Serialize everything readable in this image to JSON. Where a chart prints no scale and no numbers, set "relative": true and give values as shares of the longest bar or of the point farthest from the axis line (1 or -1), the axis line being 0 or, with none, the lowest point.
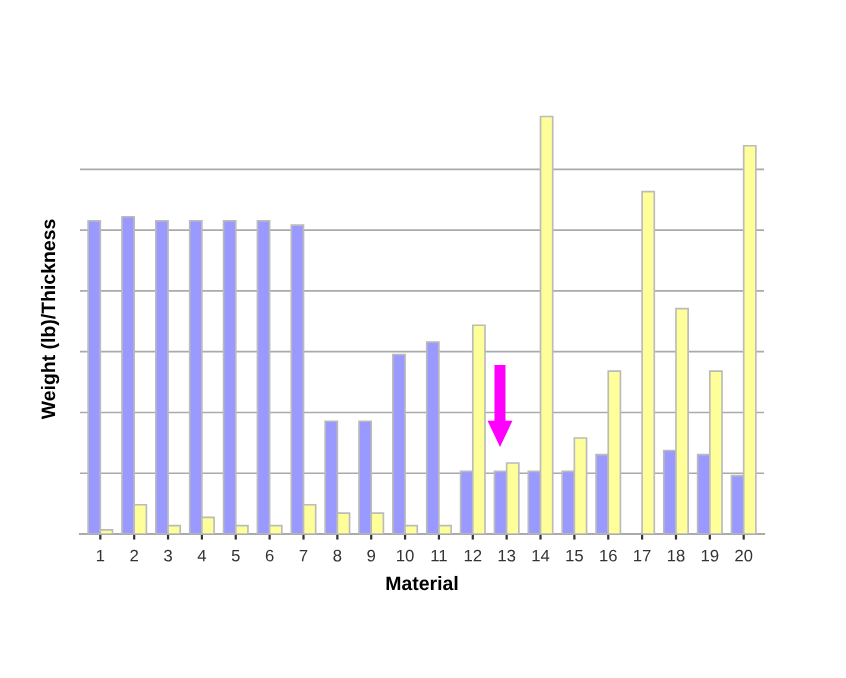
{
  "chart_data": {
    "type": "bar",
    "relative": true,
    "xlabel": "Material",
    "ylabel": "Weight (lb)/Thickness",
    "grid": "y",
    "legend": false,
    "categories": [
      "1",
      "2",
      "3",
      "4",
      "5",
      "6",
      "7",
      "8",
      "9",
      "10",
      "11",
      "12",
      "13",
      "14",
      "15",
      "16",
      "17",
      "18",
      "19",
      "20"
    ],
    "series": [
      {
        "color": "#9999ff",
        "values": [
          0.75,
          0.76,
          0.75,
          0.75,
          0.75,
          0.75,
          0.74,
          0.27,
          0.27,
          0.43,
          0.46,
          0.15,
          0.15,
          0.15,
          0.15,
          0.19,
          null,
          0.2,
          0.19,
          0.14
        ]
      },
      {
        "color": "#ffff99",
        "values": [
          0.01,
          0.07,
          0.02,
          0.04,
          0.02,
          0.02,
          0.07,
          0.05,
          0.05,
          0.02,
          0.02,
          0.5,
          0.17,
          1,
          0.23,
          0.39,
          0.82,
          0.54,
          0.39,
          0.93
        ]
      }
    ]
  }
}
